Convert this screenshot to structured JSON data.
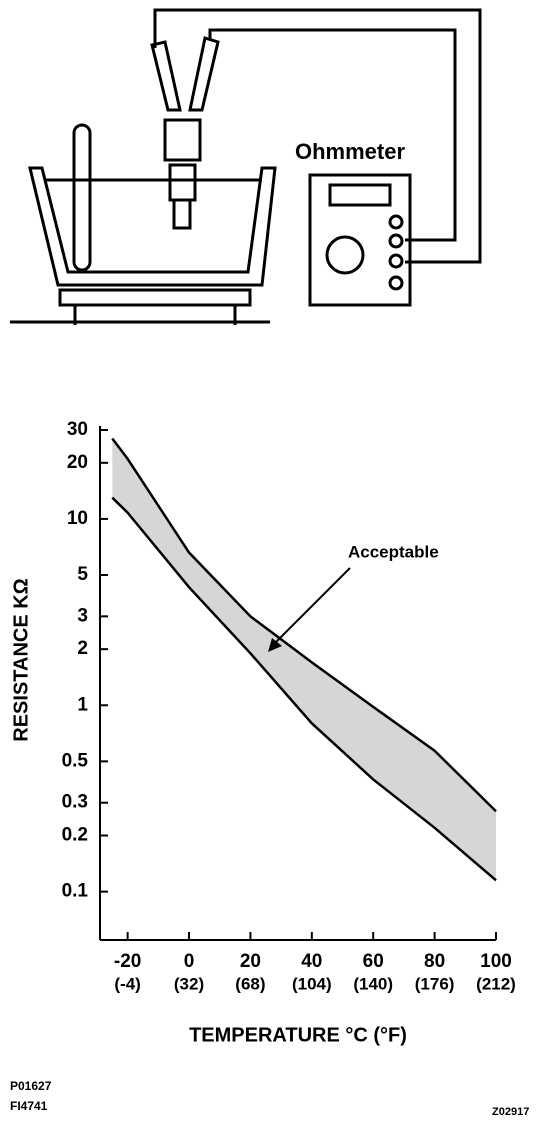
{
  "labels": {
    "meter": "Ohmmeter",
    "code1": "P01627",
    "code2": "FI4741",
    "code3": "Z02917"
  },
  "chart_data": {
    "type": "line",
    "ylabel": "RESISTANCE KΩ",
    "xlabel": "TEMPERATURE °C (°F)",
    "annotation": "Acceptable",
    "x": [
      -25,
      -20,
      0,
      20,
      40,
      60,
      80,
      100
    ],
    "series": [
      {
        "color": "#000000",
        "values": [
          27,
          21,
          6.6,
          3.0,
          1.7,
          0.98,
          0.57,
          0.27
        ]
      },
      {
        "color": "#000000",
        "values": [
          13,
          10.8,
          4.3,
          1.9,
          0.8,
          0.4,
          0.22,
          0.115
        ]
      }
    ],
    "band_color": "#bbbbbb",
    "log_y": true,
    "xlim": [
      -29,
      100
    ],
    "ylim": [
      0.055,
      30
    ],
    "xticks": [
      -20,
      0,
      20,
      40,
      60,
      80,
      100
    ],
    "xticks_f": [
      "(-4)",
      "(32)",
      "(68)",
      "(104)",
      "(140)",
      "(176)",
      "(212)"
    ],
    "yticks": [
      0.1,
      0.2,
      0.3,
      0.5,
      1,
      2,
      3,
      5,
      10,
      20,
      30
    ]
  }
}
